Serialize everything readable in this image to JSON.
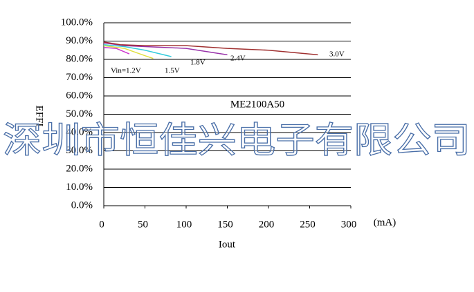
{
  "chart_data": {
    "type": "line",
    "annotation": "ME2100A50",
    "watermark": "深圳市恒佳兴电子有限公司",
    "x_label": "Iout",
    "x_unit": "(mA)",
    "y_label": "EFFI",
    "xlim": [
      0,
      300
    ],
    "xticks": [
      0,
      50,
      100,
      150,
      200,
      250,
      300
    ],
    "ylim": [
      0,
      100
    ],
    "yticks": [
      {
        "value": 0,
        "label": "0.0%"
      },
      {
        "value": 10,
        "label": "10.0%"
      },
      {
        "value": 20,
        "label": "20.0%"
      },
      {
        "value": 30,
        "label": "30.0%"
      },
      {
        "value": 40,
        "label": "40.0%"
      },
      {
        "value": 50,
        "label": "50.0%"
      },
      {
        "value": 60,
        "label": "60.0%"
      },
      {
        "value": 70,
        "label": "70.0%"
      },
      {
        "value": 80,
        "label": "80.0%"
      },
      {
        "value": 90,
        "label": "90.0%"
      },
      {
        "value": 100,
        "label": "100.0%"
      }
    ],
    "grid": true,
    "series": [
      {
        "name": "Vin=1.2V",
        "color": "#cc33cc",
        "x": [
          0,
          15,
          31
        ],
        "values": [
          86.5,
          86,
          83
        ]
      },
      {
        "name": "1.5V",
        "color": "#e0e040",
        "x": [
          0,
          25,
          50,
          60
        ],
        "values": [
          87.5,
          86,
          82,
          80.5
        ]
      },
      {
        "name": "1.8V",
        "color": "#33ccdd",
        "x": [
          0,
          25,
          50,
          82
        ],
        "values": [
          88,
          87,
          85,
          81.5
        ]
      },
      {
        "name": "2.4V",
        "color": "#9933aa",
        "x": [
          0,
          25,
          50,
          100,
          150
        ],
        "values": [
          89,
          87.5,
          87,
          86,
          82.5
        ]
      },
      {
        "name": "3.0V",
        "color": "#a03030",
        "x": [
          0,
          20,
          50,
          100,
          150,
          200,
          260
        ],
        "values": [
          89.5,
          88,
          87.5,
          87.5,
          86,
          85,
          82.5
        ]
      }
    ]
  }
}
